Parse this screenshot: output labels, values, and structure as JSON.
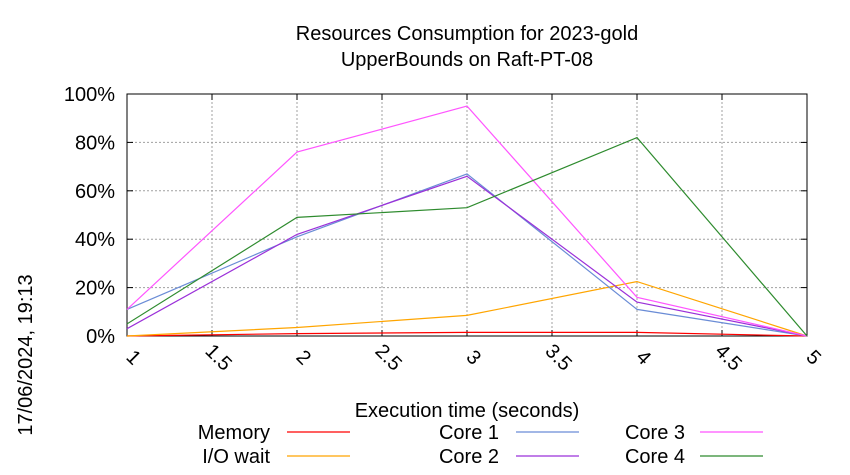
{
  "timestamp": "17/06/2024, 19:13",
  "chart_data": {
    "type": "line",
    "title": "Resources Consumption for 2023-gold",
    "subtitle": "UpperBounds on Raft-PT-08",
    "xlabel": "Execution time (seconds)",
    "ylabel": "",
    "xlim": [
      1,
      5
    ],
    "ylim": [
      0,
      100
    ],
    "x_ticks": [
      1,
      1.5,
      2,
      2.5,
      3,
      3.5,
      4,
      4.5,
      5
    ],
    "x_tick_labels": [
      "1",
      "1.5",
      "2",
      "2.5",
      "3",
      "3.5",
      "4",
      "4.5",
      "5"
    ],
    "y_ticks": [
      0,
      20,
      40,
      60,
      80,
      100
    ],
    "y_tick_labels": [
      "0%",
      "20%",
      "40%",
      "60%",
      "80%",
      "100%"
    ],
    "grid": true,
    "legend_position": "bottom",
    "x": [
      1,
      2,
      3,
      4,
      5
    ],
    "series": [
      {
        "name": "Memory",
        "color": "#ff0000",
        "values": [
          0,
          1,
          1.5,
          1.5,
          0
        ]
      },
      {
        "name": "I/O wait",
        "color": "#ffa500",
        "values": [
          0,
          3.5,
          8.5,
          22.5,
          0
        ]
      },
      {
        "name": "Core 1",
        "color": "#6a8cd6",
        "values": [
          11,
          41,
          67,
          11,
          0
        ]
      },
      {
        "name": "Core 2",
        "color": "#9b30d9",
        "values": [
          3,
          42,
          66,
          14,
          0
        ]
      },
      {
        "name": "Core 3",
        "color": "#ff55ff",
        "values": [
          11,
          76,
          95,
          16,
          0
        ]
      },
      {
        "name": "Core 4",
        "color": "#2e8b2e",
        "values": [
          5,
          49,
          53,
          82,
          0
        ]
      }
    ]
  }
}
